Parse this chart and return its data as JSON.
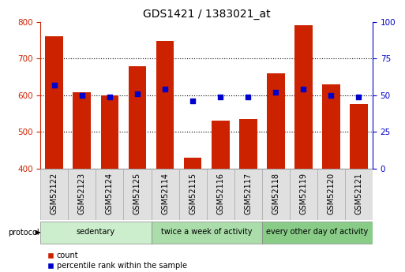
{
  "title": "GDS1421 / 1383021_at",
  "samples": [
    "GSM52122",
    "GSM52123",
    "GSM52124",
    "GSM52125",
    "GSM52114",
    "GSM52115",
    "GSM52116",
    "GSM52117",
    "GSM52118",
    "GSM52119",
    "GSM52120",
    "GSM52121"
  ],
  "counts": [
    760,
    607,
    600,
    678,
    748,
    430,
    530,
    535,
    660,
    790,
    630,
    575
  ],
  "percentile_ranks": [
    57,
    50,
    49,
    51,
    54,
    46,
    49,
    49,
    52,
    54,
    50,
    49
  ],
  "groups": [
    {
      "label": "sedentary",
      "start": 0,
      "end": 4
    },
    {
      "label": "twice a week of activity",
      "start": 4,
      "end": 8
    },
    {
      "label": "every other day of activity",
      "start": 8,
      "end": 12
    }
  ],
  "group_colors": [
    "#cceecc",
    "#aaddaa",
    "#88cc88"
  ],
  "bar_color": "#cc2200",
  "dot_color": "#0000cc",
  "ylim_left": [
    400,
    800
  ],
  "ylim_right": [
    0,
    100
  ],
  "yticks_left": [
    400,
    500,
    600,
    700,
    800
  ],
  "yticks_right": [
    0,
    25,
    50,
    75,
    100
  ],
  "grid_lines": [
    500,
    600,
    700
  ],
  "background_color": "#ffffff",
  "bar_bottom": 400,
  "title_fontsize": 10,
  "tick_fontsize": 7.5,
  "label_fontsize": 7,
  "legend_fontsize": 7
}
